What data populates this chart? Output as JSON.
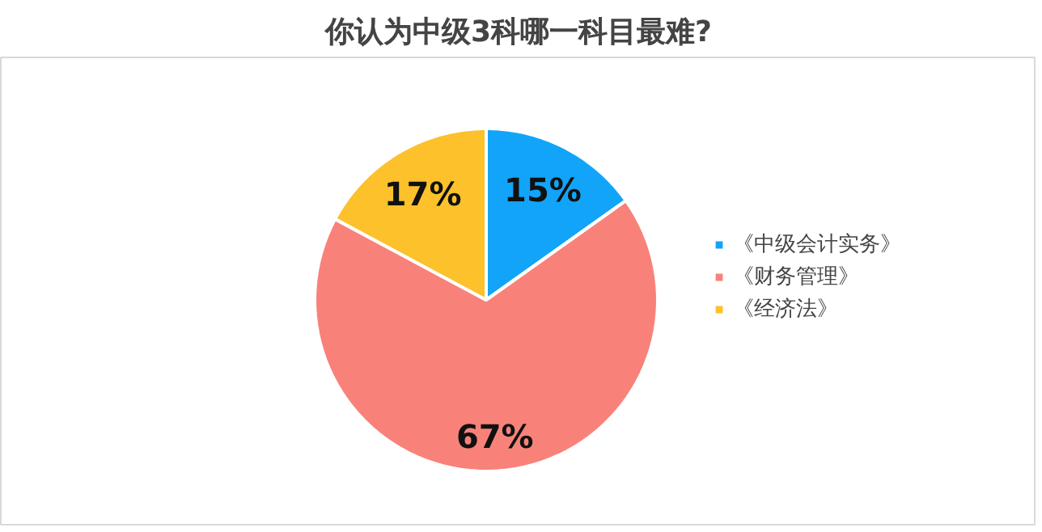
{
  "chart_data": {
    "type": "pie",
    "title": "你认为中级3科哪一科目最难?",
    "categories": [
      "《中级会计实务》",
      "《财务管理》",
      "《经济法》"
    ],
    "values": [
      15,
      67,
      17
    ],
    "colors": [
      "#12a4f8",
      "#f8827a",
      "#fcc12b"
    ],
    "value_labels": [
      "15%",
      "67%",
      "17%"
    ],
    "legend": "right"
  }
}
